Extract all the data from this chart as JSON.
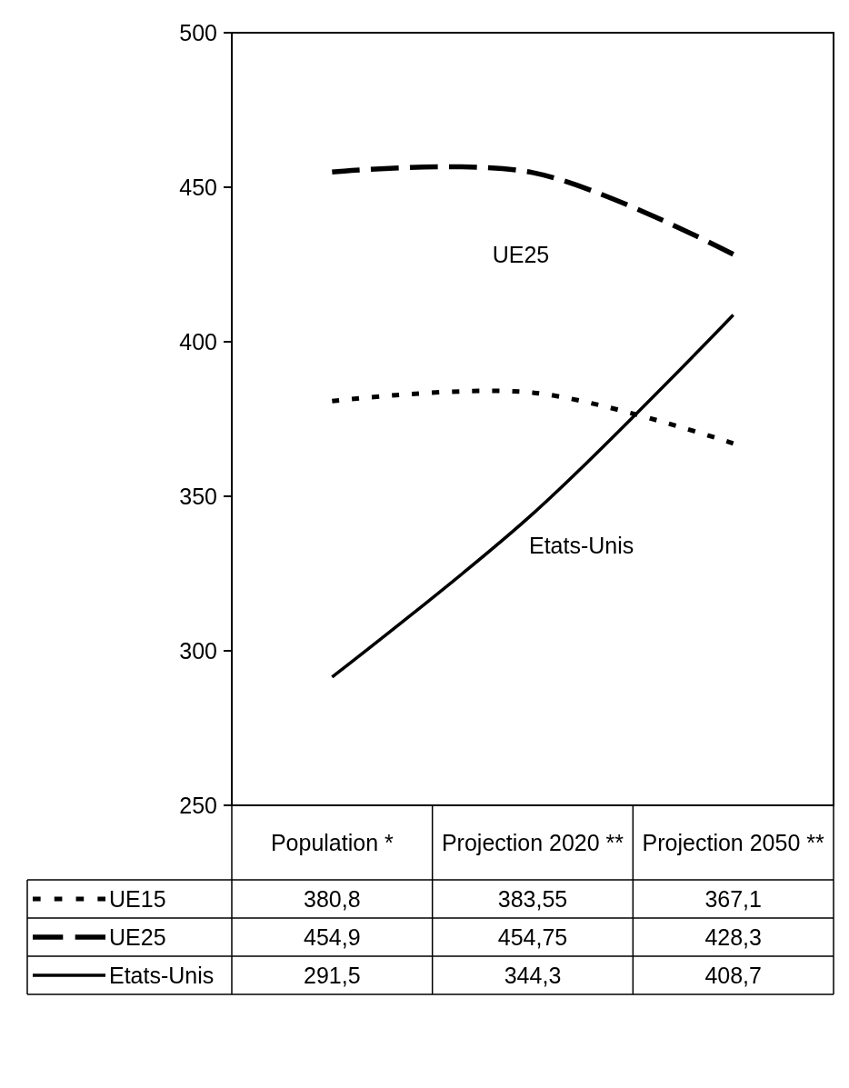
{
  "chart_data": {
    "type": "line",
    "categories": [
      "Population *",
      "Projection 2020 **",
      "Projection 2050 **"
    ],
    "series": [
      {
        "name": "UE15",
        "color": "#000000",
        "line_style": "dotted",
        "values": [
          380.8,
          383.55,
          367.1
        ],
        "value_labels": [
          "380,8",
          "383,55",
          "367,1"
        ]
      },
      {
        "name": "UE25",
        "color": "#000000",
        "line_style": "dashed",
        "values": [
          454.9,
          454.75,
          428.3
        ],
        "value_labels": [
          "454,9",
          "454,75",
          "428,3"
        ]
      },
      {
        "name": "Etats-Unis",
        "color": "#000000",
        "line_style": "solid",
        "values": [
          291.5,
          344.3,
          408.7
        ],
        "value_labels": [
          "291,5",
          "344,3",
          "408,7"
        ]
      }
    ],
    "ylim": [
      250,
      500
    ],
    "yticks": [
      250,
      300,
      350,
      400,
      450,
      500
    ],
    "legend": "bottom",
    "annotations": [
      "UE25",
      "Etats-Unis"
    ]
  }
}
